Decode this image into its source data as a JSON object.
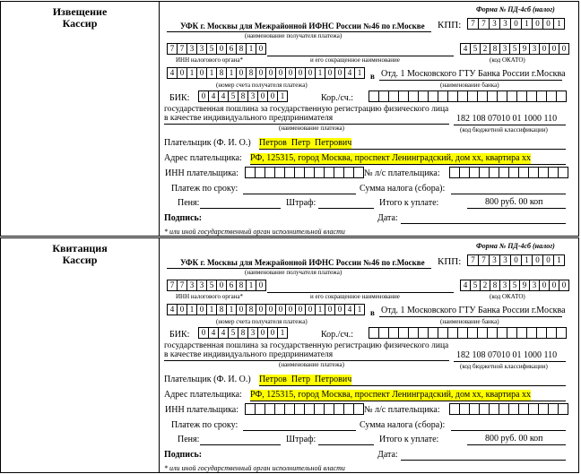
{
  "sections": [
    {
      "label_1": "Извещение",
      "label_2": "Кассир",
      "form_no": "Форма № ПД-4сб (налог)",
      "recipient": "УФК г. Москвы для Межрайонной ИФНС России №46 по г.Москве",
      "recipient_caption": "(наименование получателя платежа)",
      "kpp_label": "КПП:",
      "kpp": [
        "7",
        "7",
        "3",
        "3",
        "0",
        "1",
        "0",
        "0",
        "1"
      ],
      "inn": [
        "7",
        "7",
        "3",
        "3",
        "5",
        "0",
        "6",
        "8",
        "1",
        "0"
      ],
      "inn_caption": "ИНН налогового органа*",
      "name_caption": "и его сокращенное наименование",
      "okato": [
        "4",
        "5",
        "2",
        "8",
        "3",
        "5",
        "9",
        "3",
        "0",
        "0",
        "0"
      ],
      "okato_caption": "(код ОКАТО)",
      "account": [
        "4",
        "0",
        "1",
        "0",
        "1",
        "8",
        "1",
        "0",
        "8",
        "0",
        "0",
        "0",
        "0",
        "0",
        "0",
        "1",
        "0",
        "0",
        "4",
        "1"
      ],
      "bank_prefix": "в",
      "bank": "Отд. 1 Московского ГТУ Банка России г.Москва",
      "account_caption": "(номер счета получателя платежа)",
      "bank_caption": "(наименование банка)",
      "bik_label": "БИК:",
      "bik": [
        "0",
        "4",
        "4",
        "5",
        "8",
        "3",
        "0",
        "0",
        "1"
      ],
      "kor_label": "Кор./сч.:",
      "payment_name_1": "государственная пошлина за государственную регистрацию физического лица",
      "payment_name_2": "в качестве индивидуального предпринимателя",
      "kbk": "182 108 07010 01 1000 110",
      "payment_caption": "(наименование платежа)",
      "kbk_caption": "(код бюджетной классификации)",
      "payer_label": "Плательщик (Ф. И. О.)",
      "payer": "Петров  Петр  Петрович",
      "address_label": "Адрес плательщика:",
      "address": "РФ, 125315, город Москва, проспект Ленинградский, дом хх, квартира хх",
      "payer_inn_label": "ИНН плательщика:",
      "ls_label": "№ л/с плательщика:",
      "due_label": "Платеж по сроку:",
      "tax_sum_label": "Сумма налога (сбора):",
      "penalty_label": "Пеня:",
      "fine_label": "Штраф:",
      "total_label": "Итого к уплате:",
      "total": "800 руб. 00 коп",
      "signature_label": "Подпись:",
      "date_label": "Дата:",
      "footnote": "* или иной государственный орган исполнительной власти"
    },
    {
      "label_1": "Квитанция",
      "label_2": "Кассир",
      "form_no": "Форма № ПД-4сб (налог)",
      "recipient": "УФК г. Москвы для Межрайонной ИФНС России №46 по г.Москве",
      "recipient_caption": "(наименование получателя платежа)",
      "kpp_label": "КПП:",
      "kpp": [
        "7",
        "7",
        "3",
        "3",
        "0",
        "1",
        "0",
        "0",
        "1"
      ],
      "inn": [
        "7",
        "7",
        "3",
        "3",
        "5",
        "0",
        "6",
        "8",
        "1",
        "0"
      ],
      "inn_caption": "ИНН налогового органа*",
      "name_caption": "и его сокращенное наименование",
      "okato": [
        "4",
        "5",
        "2",
        "8",
        "3",
        "5",
        "9",
        "3",
        "0",
        "0",
        "0"
      ],
      "okato_caption": "(код ОКАТО)",
      "account": [
        "4",
        "0",
        "1",
        "0",
        "1",
        "8",
        "1",
        "0",
        "8",
        "0",
        "0",
        "0",
        "0",
        "0",
        "0",
        "1",
        "0",
        "0",
        "4",
        "1"
      ],
      "bank_prefix": "в",
      "bank": "Отд. 1 Московского ГТУ Банка России г.Москва",
      "account_caption": "(номер счета получателя платежа)",
      "bank_caption": "(наименование банка)",
      "bik_label": "БИК:",
      "bik": [
        "0",
        "4",
        "4",
        "5",
        "8",
        "3",
        "0",
        "0",
        "1"
      ],
      "kor_label": "Кор./сч.:",
      "payment_name_1": "государственная пошлина за государственную регистрацию физического лица",
      "payment_name_2": "в качестве индивидуального предпринимателя",
      "kbk": "182 108 07010 01 1000 110",
      "payment_caption": "(наименование платежа)",
      "kbk_caption": "(код бюджетной классификации)",
      "payer_label": "Плательщик (Ф. И. О.)",
      "payer": "Петров  Петр  Петрович",
      "address_label": "Адрес плательщика:",
      "address": "РФ, 125315, город Москва, проспект Ленинградский, дом хх, квартира хх",
      "payer_inn_label": "ИНН плательщика:",
      "ls_label": "№ л/с плательщика:",
      "due_label": "Платеж по сроку:",
      "tax_sum_label": "Сумма налога (сбора):",
      "penalty_label": "Пеня:",
      "fine_label": "Штраф:",
      "total_label": "Итого к уплате:",
      "total": "800 руб. 00 коп",
      "signature_label": "Подпись:",
      "date_label": "Дата:",
      "footnote": "* или иной государственный орган исполнительной власти"
    }
  ]
}
